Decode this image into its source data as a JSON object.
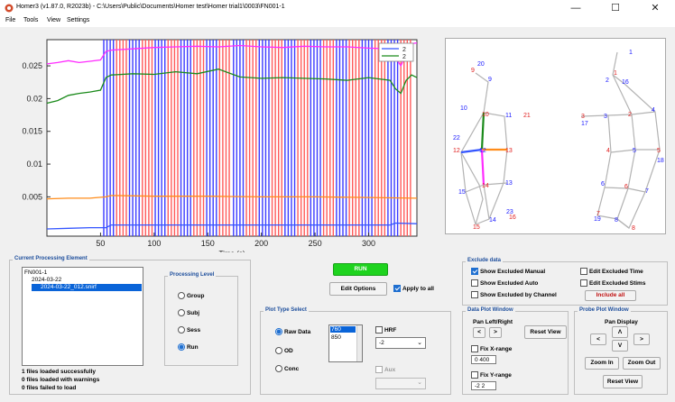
{
  "window": {
    "title": "Homer3 (v1.87.0, R2023b) - C:\\Users\\Public\\Documents\\Homer test\\Homer trial1\\0003\\FN001-1",
    "minimize": "—",
    "maximize": "☐",
    "close": "✕"
  },
  "menu": [
    "File",
    "Tools",
    "View",
    "Settings"
  ],
  "chart_data": {
    "type": "line",
    "xlabel": "Time (s)",
    "ylabel": "",
    "xlim": [
      0,
      345
    ],
    "ylim": [
      -0.001,
      0.029
    ],
    "xticks": [
      "50",
      "100",
      "150",
      "200",
      "250",
      "300"
    ],
    "xtick_values": [
      50,
      100,
      150,
      200,
      250,
      300
    ],
    "yticks": [
      "0.005",
      "0.01",
      "0.015",
      "0.02",
      "0.025"
    ],
    "ytick_values": [
      0.005,
      0.01,
      0.015,
      0.02,
      0.025
    ],
    "legend": [
      "2",
      "2"
    ],
    "legend_colors": [
      "#3355ff",
      "#1a8a1a"
    ],
    "series": [
      {
        "color": "#ff2bff",
        "x": [
          0,
          10,
          20,
          30,
          40,
          50,
          55,
          60,
          80,
          100,
          120,
          140,
          160,
          180,
          200,
          220,
          240,
          260,
          280,
          300,
          320,
          330,
          335,
          340,
          345
        ],
        "y": [
          0.0253,
          0.0255,
          0.0258,
          0.0255,
          0.0257,
          0.0259,
          0.0272,
          0.0274,
          0.0276,
          0.0278,
          0.0279,
          0.028,
          0.0279,
          0.0281,
          0.0279,
          0.0278,
          0.028,
          0.0279,
          0.0279,
          0.0277,
          0.0276,
          0.025,
          0.0268,
          0.0284,
          0.0285
        ]
      },
      {
        "color": "#1a8a1a",
        "x": [
          0,
          10,
          20,
          30,
          40,
          50,
          55,
          60,
          80,
          100,
          120,
          140,
          160,
          180,
          200,
          220,
          240,
          260,
          280,
          300,
          320,
          325,
          330,
          335,
          340,
          345
        ],
        "y": [
          0.0193,
          0.0197,
          0.0205,
          0.0208,
          0.021,
          0.0213,
          0.0232,
          0.0236,
          0.0238,
          0.0237,
          0.0241,
          0.0238,
          0.0245,
          0.0233,
          0.0231,
          0.0232,
          0.0231,
          0.023,
          0.0228,
          0.0232,
          0.0228,
          0.0215,
          0.0208,
          0.0228,
          0.0236,
          0.0232
        ]
      },
      {
        "color": "#ff8c1a",
        "x": [
          0,
          20,
          40,
          55,
          60,
          100,
          150,
          200,
          250,
          300,
          345
        ],
        "y": [
          0.0047,
          0.0048,
          0.0048,
          0.005,
          0.0052,
          0.0051,
          0.0051,
          0.005,
          0.005,
          0.0049,
          0.0048
        ]
      },
      {
        "color": "#3355ff",
        "x": [
          0,
          20,
          40,
          55,
          60,
          100,
          150,
          200,
          250,
          300,
          320,
          325,
          345
        ],
        "y": [
          0.0001,
          0.0002,
          0.0003,
          0.0003,
          0.0007,
          0.0007,
          0.0007,
          0.0007,
          0.0007,
          0.0007,
          0.0007,
          0.001,
          0.0009
        ]
      }
    ],
    "stim_blue": [
      53,
      56,
      59,
      62,
      77,
      80,
      83,
      86,
      101,
      104,
      107,
      110,
      125,
      128,
      131,
      134,
      149,
      152,
      155,
      158,
      174,
      177,
      180,
      183,
      198,
      201,
      204,
      207,
      222,
      225,
      228,
      231,
      246,
      249,
      252,
      255,
      270,
      273,
      276,
      279,
      294,
      297,
      300,
      303,
      318,
      321,
      324,
      327
    ],
    "stim_red": [
      65,
      68,
      71,
      74,
      89,
      92,
      95,
      98,
      113,
      116,
      119,
      122,
      137,
      140,
      143,
      146,
      161,
      164,
      167,
      170,
      186,
      189,
      192,
      195,
      210,
      213,
      216,
      219,
      234,
      237,
      240,
      243,
      258,
      261,
      264,
      267,
      282,
      285,
      288,
      291,
      306,
      309,
      312,
      315,
      330,
      333,
      336,
      339
    ]
  },
  "probe": {
    "sources_red": [
      "9",
      "10",
      "12",
      "13",
      "14",
      "15",
      "16",
      "1",
      "2",
      "3",
      "4",
      "5",
      "6",
      "7",
      "8"
    ],
    "detectors_blue": [
      "20",
      "9",
      "10",
      "11",
      "21",
      "22",
      "12",
      "15",
      "13",
      "23",
      "14",
      "1",
      "2",
      "16",
      "3",
      "17",
      "4",
      "5",
      "18",
      "6",
      "7",
      "19",
      "8"
    ]
  },
  "processing_element": {
    "title": "Current Processing Element",
    "tree": [
      "FN001-1",
      "2024-03-22",
      "2024-03-22_012.snirf"
    ],
    "status": [
      "1 files loaded successfully",
      "0 files loaded with warnings",
      "0 files failed to load"
    ]
  },
  "processing_level": {
    "title": "Processing Level",
    "options": [
      "Group",
      "Subj",
      "Sess",
      "Run"
    ],
    "selected": "Run"
  },
  "run_controls": {
    "run_label": "RUN",
    "edit_options": "Edit Options",
    "apply_to_all": "Apply to all"
  },
  "plot_type": {
    "title": "Plot Type Select",
    "options": [
      "Raw Data",
      "OD",
      "Conc"
    ],
    "selected": "Raw Data",
    "wavelengths": [
      "760",
      "850"
    ],
    "hrf_label": "HRF",
    "hrf_value": "-2",
    "aux_label": "Aux"
  },
  "exclude": {
    "title": "Exclude data",
    "show_excluded_manual": "Show Excluded Manual",
    "show_excluded_auto": "Show Excluded Auto",
    "show_excluded_by_channel": "Show Excluded by Channel",
    "edit_excluded_time": "Edit Excluded Time",
    "edit_excluded_stims": "Edit Excluded Stims",
    "include_all": "Include all"
  },
  "data_plot_window": {
    "title": "Data Plot Window",
    "pan_label": "Pan Left/Right",
    "left": "<",
    "right": ">",
    "reset_view": "Reset View",
    "fix_x": "Fix X-range",
    "x_range": "0 400",
    "fix_y": "Fix Y-range",
    "y_range": "-2 2"
  },
  "probe_plot_window": {
    "title": "Probe Plot Window",
    "pan_display": "Pan Display",
    "up": "Λ",
    "down": "V",
    "left": "<",
    "right": ">",
    "zoom_in": "Zoom In",
    "zoom_out": "Zoom Out",
    "reset_view": "Reset View"
  }
}
